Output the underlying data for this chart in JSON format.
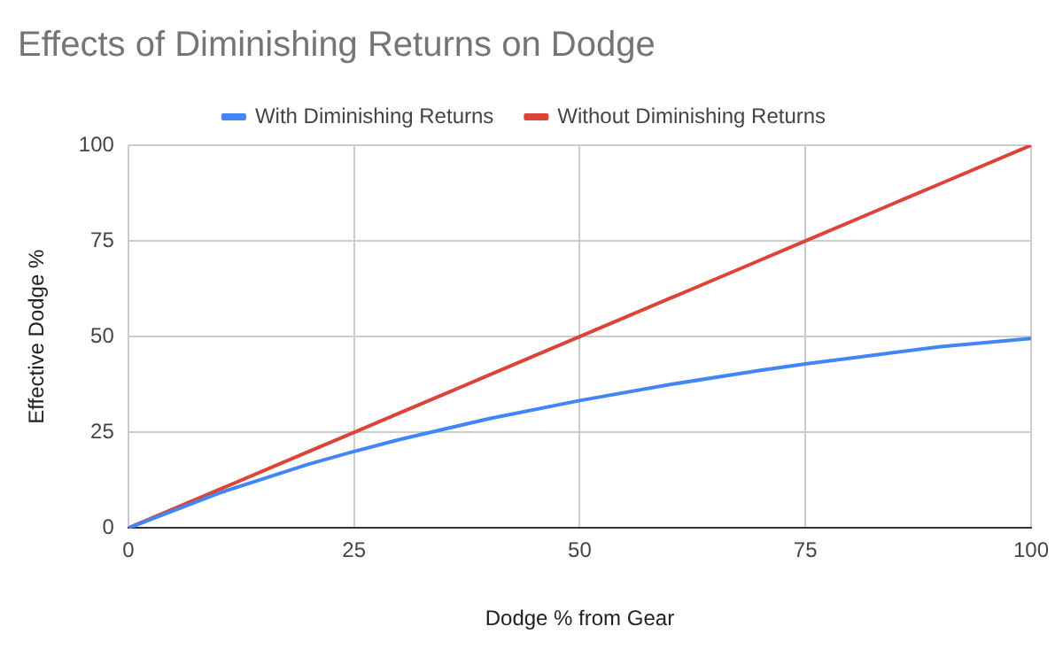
{
  "chart_data": {
    "type": "line",
    "title": "Effects of Diminishing Returns on Dodge",
    "xlabel": "Dodge % from Gear",
    "ylabel": "Effective Dodge %",
    "x": [
      0,
      10,
      20,
      25,
      30,
      40,
      50,
      60,
      70,
      75,
      80,
      90,
      100
    ],
    "series": [
      {
        "name": "With Diminishing Returns",
        "color": "#4285f4",
        "values": [
          0,
          9.1,
          16.7,
          20,
          23.1,
          28.6,
          33.3,
          37.5,
          41.2,
          42.9,
          44.4,
          47.4,
          49.5
        ]
      },
      {
        "name": "Without Diminishing Returns",
        "color": "#db4437",
        "values": [
          0,
          10,
          20,
          25,
          30,
          40,
          50,
          60,
          70,
          75,
          80,
          90,
          100
        ]
      }
    ],
    "xlim": [
      0,
      100
    ],
    "xticks": [
      0,
      25,
      50,
      75,
      100
    ],
    "ylim": [
      0,
      100
    ],
    "yticks": [
      0,
      25,
      50,
      75,
      100
    ],
    "grid": true,
    "legend": "top",
    "marker": "none",
    "line_style": "solid"
  }
}
